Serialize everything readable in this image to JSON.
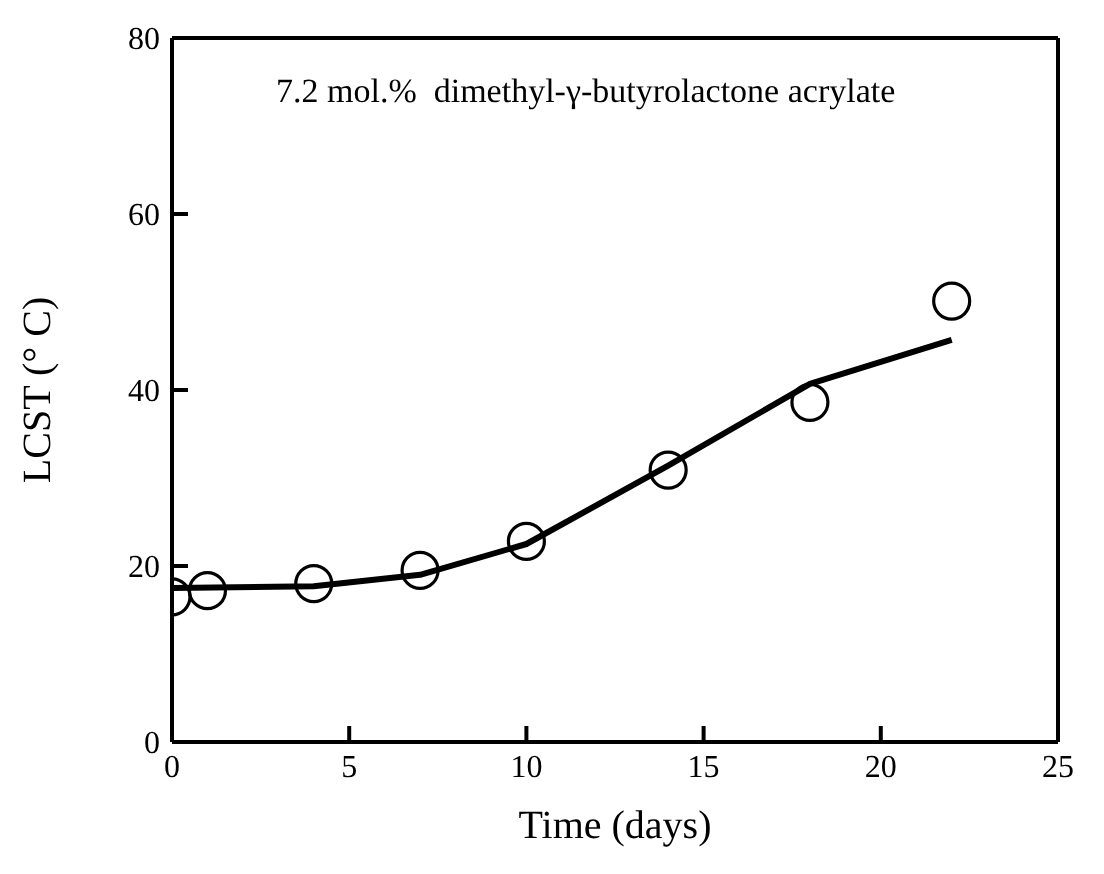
{
  "chart_data": {
    "type": "scatter",
    "xlabel": "Time (days)",
    "ylabel": "LCST (° C)",
    "annotations": [
      "7.2 mol.%  dimethyl-γ-butyrolactone acrylate"
    ],
    "xlim": [
      0,
      25
    ],
    "xticks": [
      0,
      5,
      10,
      15,
      20,
      25
    ],
    "ylim": [
      0,
      80
    ],
    "yticks": [
      0,
      20,
      40,
      60,
      80
    ],
    "legend": false,
    "series": [
      {
        "marker": "circle",
        "color": "#000000",
        "x": [
          0,
          1,
          4,
          7,
          10,
          14,
          18,
          22
        ],
        "values": [
          16.5,
          17.2,
          18,
          19.5,
          22.8,
          30.9,
          38.6,
          50.1
        ]
      },
      {
        "type": "line",
        "marker": "none",
        "line_style": "solid",
        "color": "#000000",
        "x": [
          0,
          4,
          7,
          10,
          14,
          18,
          22
        ],
        "values": [
          17.5,
          17.7,
          19,
          22.5,
          31.4,
          40.7,
          45.7
        ]
      }
    ]
  }
}
